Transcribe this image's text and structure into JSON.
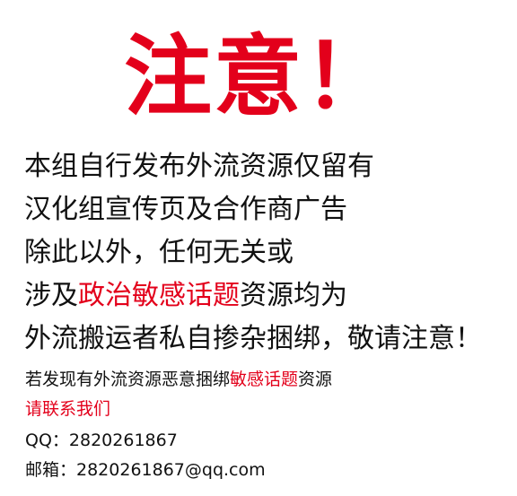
{
  "title": "注意！",
  "lines": {
    "l1": "本组自行发布外流资源仅留有",
    "l2": "汉化组宣传页及合作商广告",
    "l3": "除此以外，任何无关或",
    "l4_pre": "涉及",
    "l4_red": "政治敏感话题",
    "l4_post": "资源均为",
    "l5": "外流搬运者私自掺杂捆绑，敬请注意！"
  },
  "footer": {
    "f1_pre": "若发现有外流资源恶意捆绑",
    "f1_red": "敏感话题",
    "f1_post": "资源",
    "f2": "请联系我们",
    "qq": "QQ：2820261867",
    "email": "邮箱：2820261867@qq.com"
  },
  "colors": {
    "accent": "#e3001b",
    "text": "#111111",
    "background": "#ffffff"
  }
}
